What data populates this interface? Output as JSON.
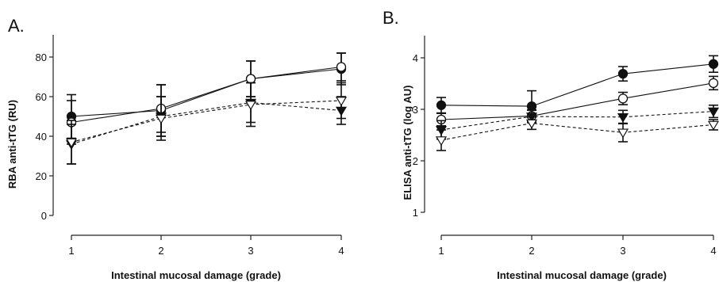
{
  "chart_data": [
    {
      "type": "line",
      "panel_label": "A.",
      "xlabel": "Intestinal mucosal damage (grade)",
      "ylabel": "RBA anti-tTG (RU)",
      "x": [
        1,
        2,
        3,
        4
      ],
      "xticks": [
        "1",
        "2",
        "3",
        "4"
      ],
      "ylim": [
        0,
        80
      ],
      "yticks": [
        "0",
        "20",
        "40",
        "60",
        "80"
      ],
      "grid": false,
      "legend": "none",
      "series": [
        {
          "marker": "filled-circle",
          "line": "solid",
          "values": [
            50,
            53,
            69,
            74
          ],
          "err": [
            11,
            13,
            9,
            8
          ]
        },
        {
          "marker": "open-circle",
          "line": "solid",
          "values": [
            47,
            54,
            69,
            75
          ],
          "err": [
            11,
            12,
            9,
            7
          ]
        },
        {
          "marker": "filled-triangle-down",
          "line": "dashed",
          "values": [
            36,
            50,
            57,
            53
          ],
          "err": [
            10,
            10,
            10,
            7
          ]
        },
        {
          "marker": "open-triangle-down",
          "line": "dashed",
          "values": [
            37,
            49,
            56,
            58
          ],
          "err": [
            11,
            11,
            11,
            9
          ]
        }
      ]
    },
    {
      "type": "line",
      "panel_label": "B.",
      "xlabel": "Intestinal mucosal damage (grade)",
      "ylabel": "ELISA anti-tTG (log AU)",
      "x": [
        1,
        2,
        3,
        4
      ],
      "xticks": [
        "1",
        "2",
        "3",
        "4"
      ],
      "ylim": [
        1,
        4
      ],
      "yticks": [
        "1",
        "2",
        "3",
        "4"
      ],
      "grid": false,
      "legend": "none",
      "series": [
        {
          "marker": "filled-circle",
          "line": "solid",
          "values": [
            3.08,
            3.06,
            3.69,
            3.88
          ],
          "err": [
            0.15,
            0.3,
            0.14,
            0.16
          ]
        },
        {
          "marker": "open-circle",
          "line": "solid",
          "values": [
            2.8,
            2.87,
            3.21,
            3.51
          ],
          "err": [
            0.12,
            0.12,
            0.12,
            0.13
          ]
        },
        {
          "marker": "filled-triangle-down",
          "line": "dashed",
          "values": [
            2.6,
            2.86,
            2.85,
            2.96
          ],
          "err": [
            0.18,
            0.12,
            0.13,
            0.12
          ]
        },
        {
          "marker": "open-triangle-down",
          "line": "dashed",
          "values": [
            2.4,
            2.73,
            2.55,
            2.7
          ],
          "err": [
            0.2,
            0.12,
            0.18,
            0.1
          ]
        }
      ]
    }
  ]
}
